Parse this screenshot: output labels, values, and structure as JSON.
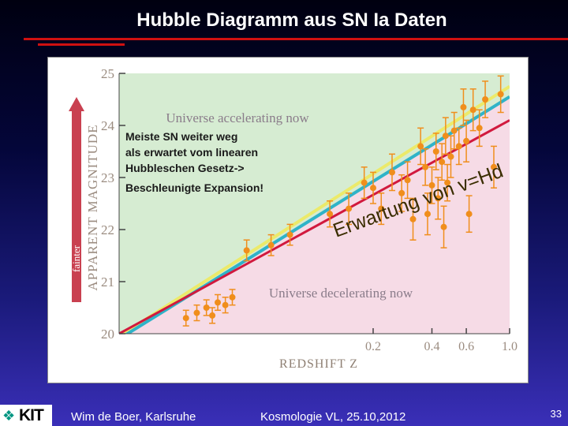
{
  "slide": {
    "title": "Hubble Diagramm aus SN Ia Daten",
    "logo_text": "KIT",
    "footer_left": "Wim de Boer, Karlsruhe",
    "footer_center": "Kosmologie VL,  25.10,2012",
    "page_number": "33"
  },
  "colors": {
    "accent_rule": "#d01010",
    "accelerating_region": "#d6ecd2",
    "decelerating_region": "#f6dbe6",
    "hubble_line": "#2fb3c8",
    "empty_universe_line": "#ecea6a",
    "linear_line": "#d1193e",
    "point_color": "#f08e1c",
    "annotation_color": "#1a1a1a",
    "expectation_text_color": "#3a2d00"
  },
  "annotations": {
    "accelerating": "Universe accelerating now",
    "decelerating": "Universe decelerating now",
    "fainter_label": "fainter",
    "note_lines": [
      "Meiste SN weiter weg",
      "als erwartet vom linearen",
      "Hubbleschen Gesetz->",
      "Beschleunigte Expansion!"
    ],
    "expectation_label": "Erwartung von v=Hd"
  },
  "chart_data": {
    "type": "scatter",
    "title": "",
    "xlabel": "REDSHIFT  Z",
    "ylabel": "APPARENT MAGNITUDE",
    "x_scale": "log",
    "xlim": [
      0.01,
      1.0
    ],
    "ylim": [
      20,
      25
    ],
    "x_ticks": [
      {
        "value": 0.2,
        "label": "0.2"
      },
      {
        "value": 0.4,
        "label": "0.4"
      },
      {
        "value": 0.6,
        "label": "0.6"
      },
      {
        "value": 1.0,
        "label": "1.0"
      }
    ],
    "y_ticks": [
      {
        "value": 20,
        "label": "20"
      },
      {
        "value": 21,
        "label": "21"
      },
      {
        "value": 22,
        "label": "22"
      },
      {
        "value": 23,
        "label": "23"
      },
      {
        "value": 24,
        "label": "24"
      },
      {
        "value": 25,
        "label": "25"
      }
    ],
    "lines": [
      {
        "role": "linear-hubble",
        "color": "#d1193e",
        "points": [
          [
            0.01,
            20.0
          ],
          [
            1.0,
            24.1
          ]
        ]
      },
      {
        "role": "boundary",
        "color": "#2fb3c8",
        "points": [
          [
            0.01,
            19.9
          ],
          [
            1.0,
            24.55
          ]
        ]
      },
      {
        "role": "boundary-upper",
        "color": "#ecea6a",
        "points": [
          [
            0.01,
            19.95
          ],
          [
            1.0,
            24.75
          ]
        ]
      }
    ],
    "points": [
      {
        "x": 0.022,
        "y": 20.3,
        "err": 0.15
      },
      {
        "x": 0.025,
        "y": 20.4,
        "err": 0.15
      },
      {
        "x": 0.028,
        "y": 20.5,
        "err": 0.15
      },
      {
        "x": 0.03,
        "y": 20.35,
        "err": 0.15
      },
      {
        "x": 0.032,
        "y": 20.6,
        "err": 0.15
      },
      {
        "x": 0.035,
        "y": 20.55,
        "err": 0.15
      },
      {
        "x": 0.038,
        "y": 20.7,
        "err": 0.15
      },
      {
        "x": 0.045,
        "y": 21.6,
        "err": 0.2
      },
      {
        "x": 0.06,
        "y": 21.7,
        "err": 0.2
      },
      {
        "x": 0.075,
        "y": 21.9,
        "err": 0.2
      },
      {
        "x": 0.12,
        "y": 22.3,
        "err": 0.25
      },
      {
        "x": 0.15,
        "y": 22.4,
        "err": 0.3
      },
      {
        "x": 0.18,
        "y": 22.9,
        "err": 0.3
      },
      {
        "x": 0.2,
        "y": 22.8,
        "err": 0.3
      },
      {
        "x": 0.22,
        "y": 22.4,
        "err": 0.3
      },
      {
        "x": 0.25,
        "y": 23.1,
        "err": 0.35
      },
      {
        "x": 0.28,
        "y": 22.7,
        "err": 0.35
      },
      {
        "x": 0.3,
        "y": 22.95,
        "err": 0.35
      },
      {
        "x": 0.32,
        "y": 22.2,
        "err": 0.4
      },
      {
        "x": 0.35,
        "y": 23.6,
        "err": 0.35
      },
      {
        "x": 0.37,
        "y": 23.2,
        "err": 0.35
      },
      {
        "x": 0.38,
        "y": 22.3,
        "err": 0.4
      },
      {
        "x": 0.4,
        "y": 22.85,
        "err": 0.35
      },
      {
        "x": 0.42,
        "y": 23.5,
        "err": 0.35
      },
      {
        "x": 0.43,
        "y": 22.6,
        "err": 0.4
      },
      {
        "x": 0.45,
        "y": 23.3,
        "err": 0.35
      },
      {
        "x": 0.46,
        "y": 22.05,
        "err": 0.4
      },
      {
        "x": 0.47,
        "y": 23.8,
        "err": 0.35
      },
      {
        "x": 0.48,
        "y": 22.9,
        "err": 0.35
      },
      {
        "x": 0.5,
        "y": 23.4,
        "err": 0.4
      },
      {
        "x": 0.52,
        "y": 23.9,
        "err": 0.35
      },
      {
        "x": 0.55,
        "y": 23.6,
        "err": 0.35
      },
      {
        "x": 0.58,
        "y": 24.35,
        "err": 0.35
      },
      {
        "x": 0.6,
        "y": 23.7,
        "err": 0.4
      },
      {
        "x": 0.62,
        "y": 22.3,
        "err": 0.35
      },
      {
        "x": 0.65,
        "y": 24.3,
        "err": 0.4
      },
      {
        "x": 0.7,
        "y": 23.95,
        "err": 0.35
      },
      {
        "x": 0.75,
        "y": 24.5,
        "err": 0.35
      },
      {
        "x": 0.83,
        "y": 23.2,
        "err": 0.4
      },
      {
        "x": 0.9,
        "y": 24.6,
        "err": 0.35
      }
    ]
  }
}
